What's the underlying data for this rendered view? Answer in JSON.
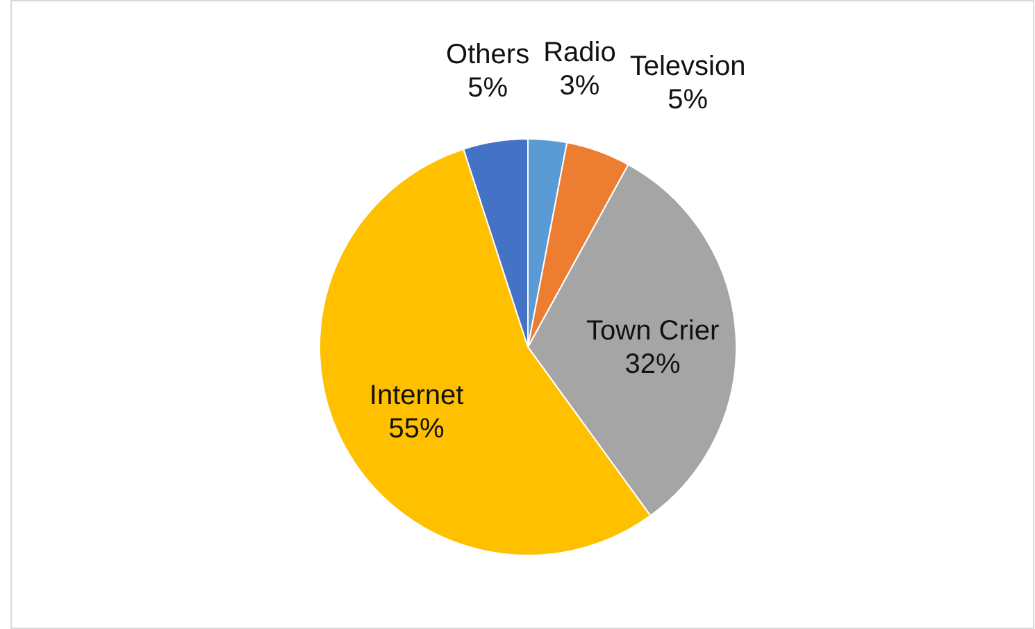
{
  "chart_data": {
    "type": "pie",
    "categories": [
      "Radio",
      "Televsion",
      "Town Crier",
      "Internet",
      "Others"
    ],
    "values": [
      3,
      5,
      32,
      55,
      5
    ],
    "value_labels": [
      "3%",
      "5%",
      "32%",
      "55%",
      "5%"
    ],
    "colors": [
      "#5b9bd5",
      "#ed7d31",
      "#a5a5a5",
      "#ffc000",
      "#4472c4"
    ]
  }
}
